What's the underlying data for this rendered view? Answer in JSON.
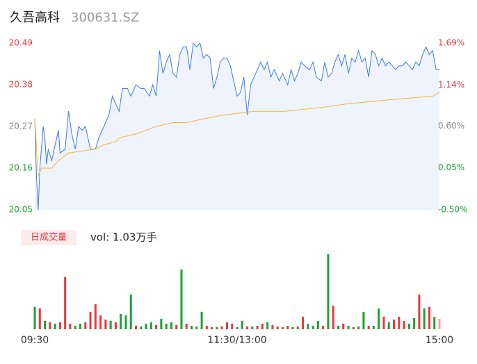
{
  "chart_data": {
    "type": "intraday",
    "title": "久吾高科",
    "subtitle": "300631.SZ",
    "volume_label": "日成交量",
    "volume_note": "vol: 1.03万手",
    "xlim": [
      0,
      240
    ],
    "xticks": [
      {
        "value": 0,
        "label": "09:30"
      },
      {
        "value": 120,
        "label": "11:30/13:00"
      },
      {
        "value": 240,
        "label": "15:00"
      }
    ],
    "ylim": [
      20.05,
      20.49
    ],
    "yticks": [
      20.05,
      20.16,
      20.27,
      20.38,
      20.49
    ],
    "ytick_colors": [
      "#1aa332",
      "#1aa332",
      "#888888",
      "#e8383d",
      "#e8383d"
    ],
    "y2lim": [
      -0.5,
      1.69
    ],
    "y2ticks": [
      {
        "value": -0.5,
        "label": "-0.50%"
      },
      {
        "value": 0.05,
        "label": "0.05%"
      },
      {
        "value": 0.6,
        "label": "0.60%"
      },
      {
        "value": 1.14,
        "label": "1.14%"
      },
      {
        "value": 1.69,
        "label": "1.69%"
      }
    ],
    "y2tick_colors": [
      "#1aa332",
      "#1aa332",
      "#888888",
      "#e8383d",
      "#e8383d"
    ],
    "price": {
      "color": "#3d7be0",
      "fill": "#eef3fc",
      "x": [
        0,
        1,
        2,
        3,
        5,
        6,
        7,
        8,
        10,
        12,
        14,
        15,
        18,
        20,
        22,
        24,
        26,
        28,
        30,
        33,
        36,
        38,
        40,
        42,
        44,
        46,
        48,
        50,
        52,
        55,
        57,
        60,
        63,
        65,
        68,
        70,
        72,
        74,
        76,
        78,
        80,
        82,
        84,
        86,
        88,
        90,
        92,
        94,
        96,
        98,
        100,
        102,
        104,
        106,
        108,
        110,
        112,
        114,
        116,
        118,
        120,
        122,
        124,
        126,
        128,
        130,
        132,
        134,
        136,
        138,
        140,
        142,
        145,
        147,
        150,
        152,
        154,
        156,
        158,
        160,
        163,
        165,
        167,
        170,
        172,
        174,
        176,
        178,
        180,
        182,
        184,
        186,
        188,
        190,
        192,
        194,
        196,
        198,
        200,
        202,
        204,
        206,
        208,
        210,
        212,
        214,
        216,
        218,
        220,
        222,
        224,
        226,
        228,
        230,
        232,
        234,
        236,
        238,
        240
      ],
      "values": [
        20.29,
        20.14,
        20.05,
        20.16,
        20.27,
        20.24,
        20.17,
        20.21,
        20.18,
        20.22,
        20.26,
        20.2,
        20.21,
        20.31,
        20.25,
        20.21,
        20.27,
        20.26,
        20.27,
        20.21,
        20.21,
        20.24,
        20.26,
        20.28,
        20.3,
        20.35,
        20.33,
        20.31,
        20.37,
        20.37,
        20.35,
        20.38,
        20.37,
        20.37,
        20.35,
        20.38,
        20.35,
        20.47,
        20.41,
        20.44,
        20.46,
        20.41,
        20.4,
        20.46,
        20.48,
        20.48,
        20.42,
        20.49,
        20.48,
        20.49,
        20.45,
        20.46,
        20.45,
        20.37,
        20.4,
        20.44,
        20.45,
        20.45,
        20.43,
        20.39,
        20.35,
        20.36,
        20.4,
        20.3,
        20.38,
        20.4,
        20.42,
        20.44,
        20.42,
        20.44,
        20.4,
        20.42,
        20.39,
        20.41,
        20.38,
        20.42,
        20.39,
        20.41,
        20.44,
        20.43,
        20.42,
        20.44,
        20.4,
        20.39,
        20.44,
        20.4,
        20.41,
        20.44,
        20.46,
        20.43,
        20.46,
        20.41,
        20.45,
        20.44,
        20.47,
        20.44,
        20.45,
        20.4,
        20.47,
        20.46,
        20.43,
        20.45,
        20.43,
        20.44,
        20.43,
        20.42,
        20.43,
        20.43,
        20.44,
        20.43,
        20.42,
        20.44,
        20.43,
        20.46,
        20.48,
        20.46,
        20.47,
        20.42,
        20.42
      ]
    },
    "average": {
      "color": "#f4b632",
      "x": [
        0,
        2,
        4,
        10,
        14,
        20,
        36,
        40,
        48,
        50,
        60,
        66,
        72,
        82,
        90,
        100,
        112,
        130,
        148,
        170,
        186,
        210,
        236,
        240
      ],
      "values": [
        20.29,
        20.14,
        20.16,
        20.16,
        20.18,
        20.2,
        20.21,
        20.22,
        20.23,
        20.24,
        20.25,
        20.26,
        20.27,
        20.28,
        20.28,
        20.29,
        20.3,
        20.31,
        20.31,
        20.32,
        20.33,
        20.34,
        20.35,
        20.36
      ]
    },
    "volume": {
      "vlim": [
        0,
        110
      ],
      "x": [
        0,
        3,
        6,
        9,
        12,
        15,
        18,
        21,
        24,
        27,
        30,
        33,
        36,
        39,
        42,
        45,
        48,
        51,
        54,
        57,
        60,
        63,
        66,
        69,
        72,
        75,
        78,
        81,
        84,
        87,
        90,
        93,
        96,
        99,
        102,
        105,
        108,
        111,
        114,
        117,
        120,
        123,
        126,
        129,
        132,
        135,
        138,
        141,
        144,
        147,
        150,
        153,
        156,
        159,
        162,
        165,
        168,
        171,
        174,
        177,
        180,
        183,
        186,
        189,
        192,
        195,
        198,
        201,
        204,
        207,
        210,
        213,
        216,
        219,
        222,
        225,
        228,
        231,
        234,
        237,
        240
      ],
      "values": [
        32,
        30,
        12,
        10,
        8,
        10,
        75,
        8,
        5,
        8,
        10,
        25,
        36,
        20,
        14,
        12,
        10,
        22,
        20,
        50,
        5,
        4,
        8,
        10,
        6,
        15,
        8,
        10,
        6,
        86,
        8,
        5,
        4,
        25,
        5,
        3,
        3,
        4,
        10,
        8,
        3,
        12,
        4,
        4,
        5,
        8,
        10,
        6,
        4,
        3,
        5,
        3,
        4,
        18,
        8,
        5,
        12,
        5,
        108,
        34,
        5,
        8,
        5,
        3,
        4,
        25,
        5,
        5,
        30,
        18,
        10,
        14,
        18,
        12,
        8,
        16,
        50,
        30,
        32,
        18,
        15
      ],
      "colors": [
        "#1aa332",
        "#e8383d",
        "#1aa332",
        "#e8383d",
        "#1aa332",
        "#e8383d",
        "#e8383d",
        "#e8383d",
        "#1aa332",
        "#1aa332",
        "#e8383d",
        "#e8383d",
        "#e8383d",
        "#e8383d",
        "#e8383d",
        "#1aa332",
        "#e8383d",
        "#1aa332",
        "#1aa332",
        "#1aa332",
        "#e8383d",
        "#1aa332",
        "#1aa332",
        "#1aa332",
        "#e8383d",
        "#1aa332",
        "#1aa332",
        "#1aa332",
        "#e8383d",
        "#1aa332",
        "#e8383d",
        "#1aa332",
        "#1aa332",
        "#1aa332",
        "#e8383d",
        "#e8383d",
        "#1aa332",
        "#e8383d",
        "#e8383d",
        "#e8383d",
        "#1aa332",
        "#1aa332",
        "#e8383d",
        "#1aa332",
        "#e8383d",
        "#e8383d",
        "#1aa332",
        "#e8383d",
        "#e8383d",
        "#1aa332",
        "#e8383d",
        "#1aa332",
        "#e8383d",
        "#e8383d",
        "#1aa332",
        "#1aa332",
        "#1aa332",
        "#e8383d",
        "#1aa332",
        "#e8383d",
        "#1aa332",
        "#e8383d",
        "#1aa332",
        "#e8383d",
        "#1aa332",
        "#1aa332",
        "#e8383d",
        "#1aa332",
        "#1aa332",
        "#e8383d",
        "#1aa332",
        "#e8383d",
        "#e8383d",
        "#e8383d",
        "#1aa332",
        "#1aa332",
        "#e8383d",
        "#1aa332",
        "#e8383d",
        "#1aa332",
        "#f5a3a5"
      ]
    }
  }
}
